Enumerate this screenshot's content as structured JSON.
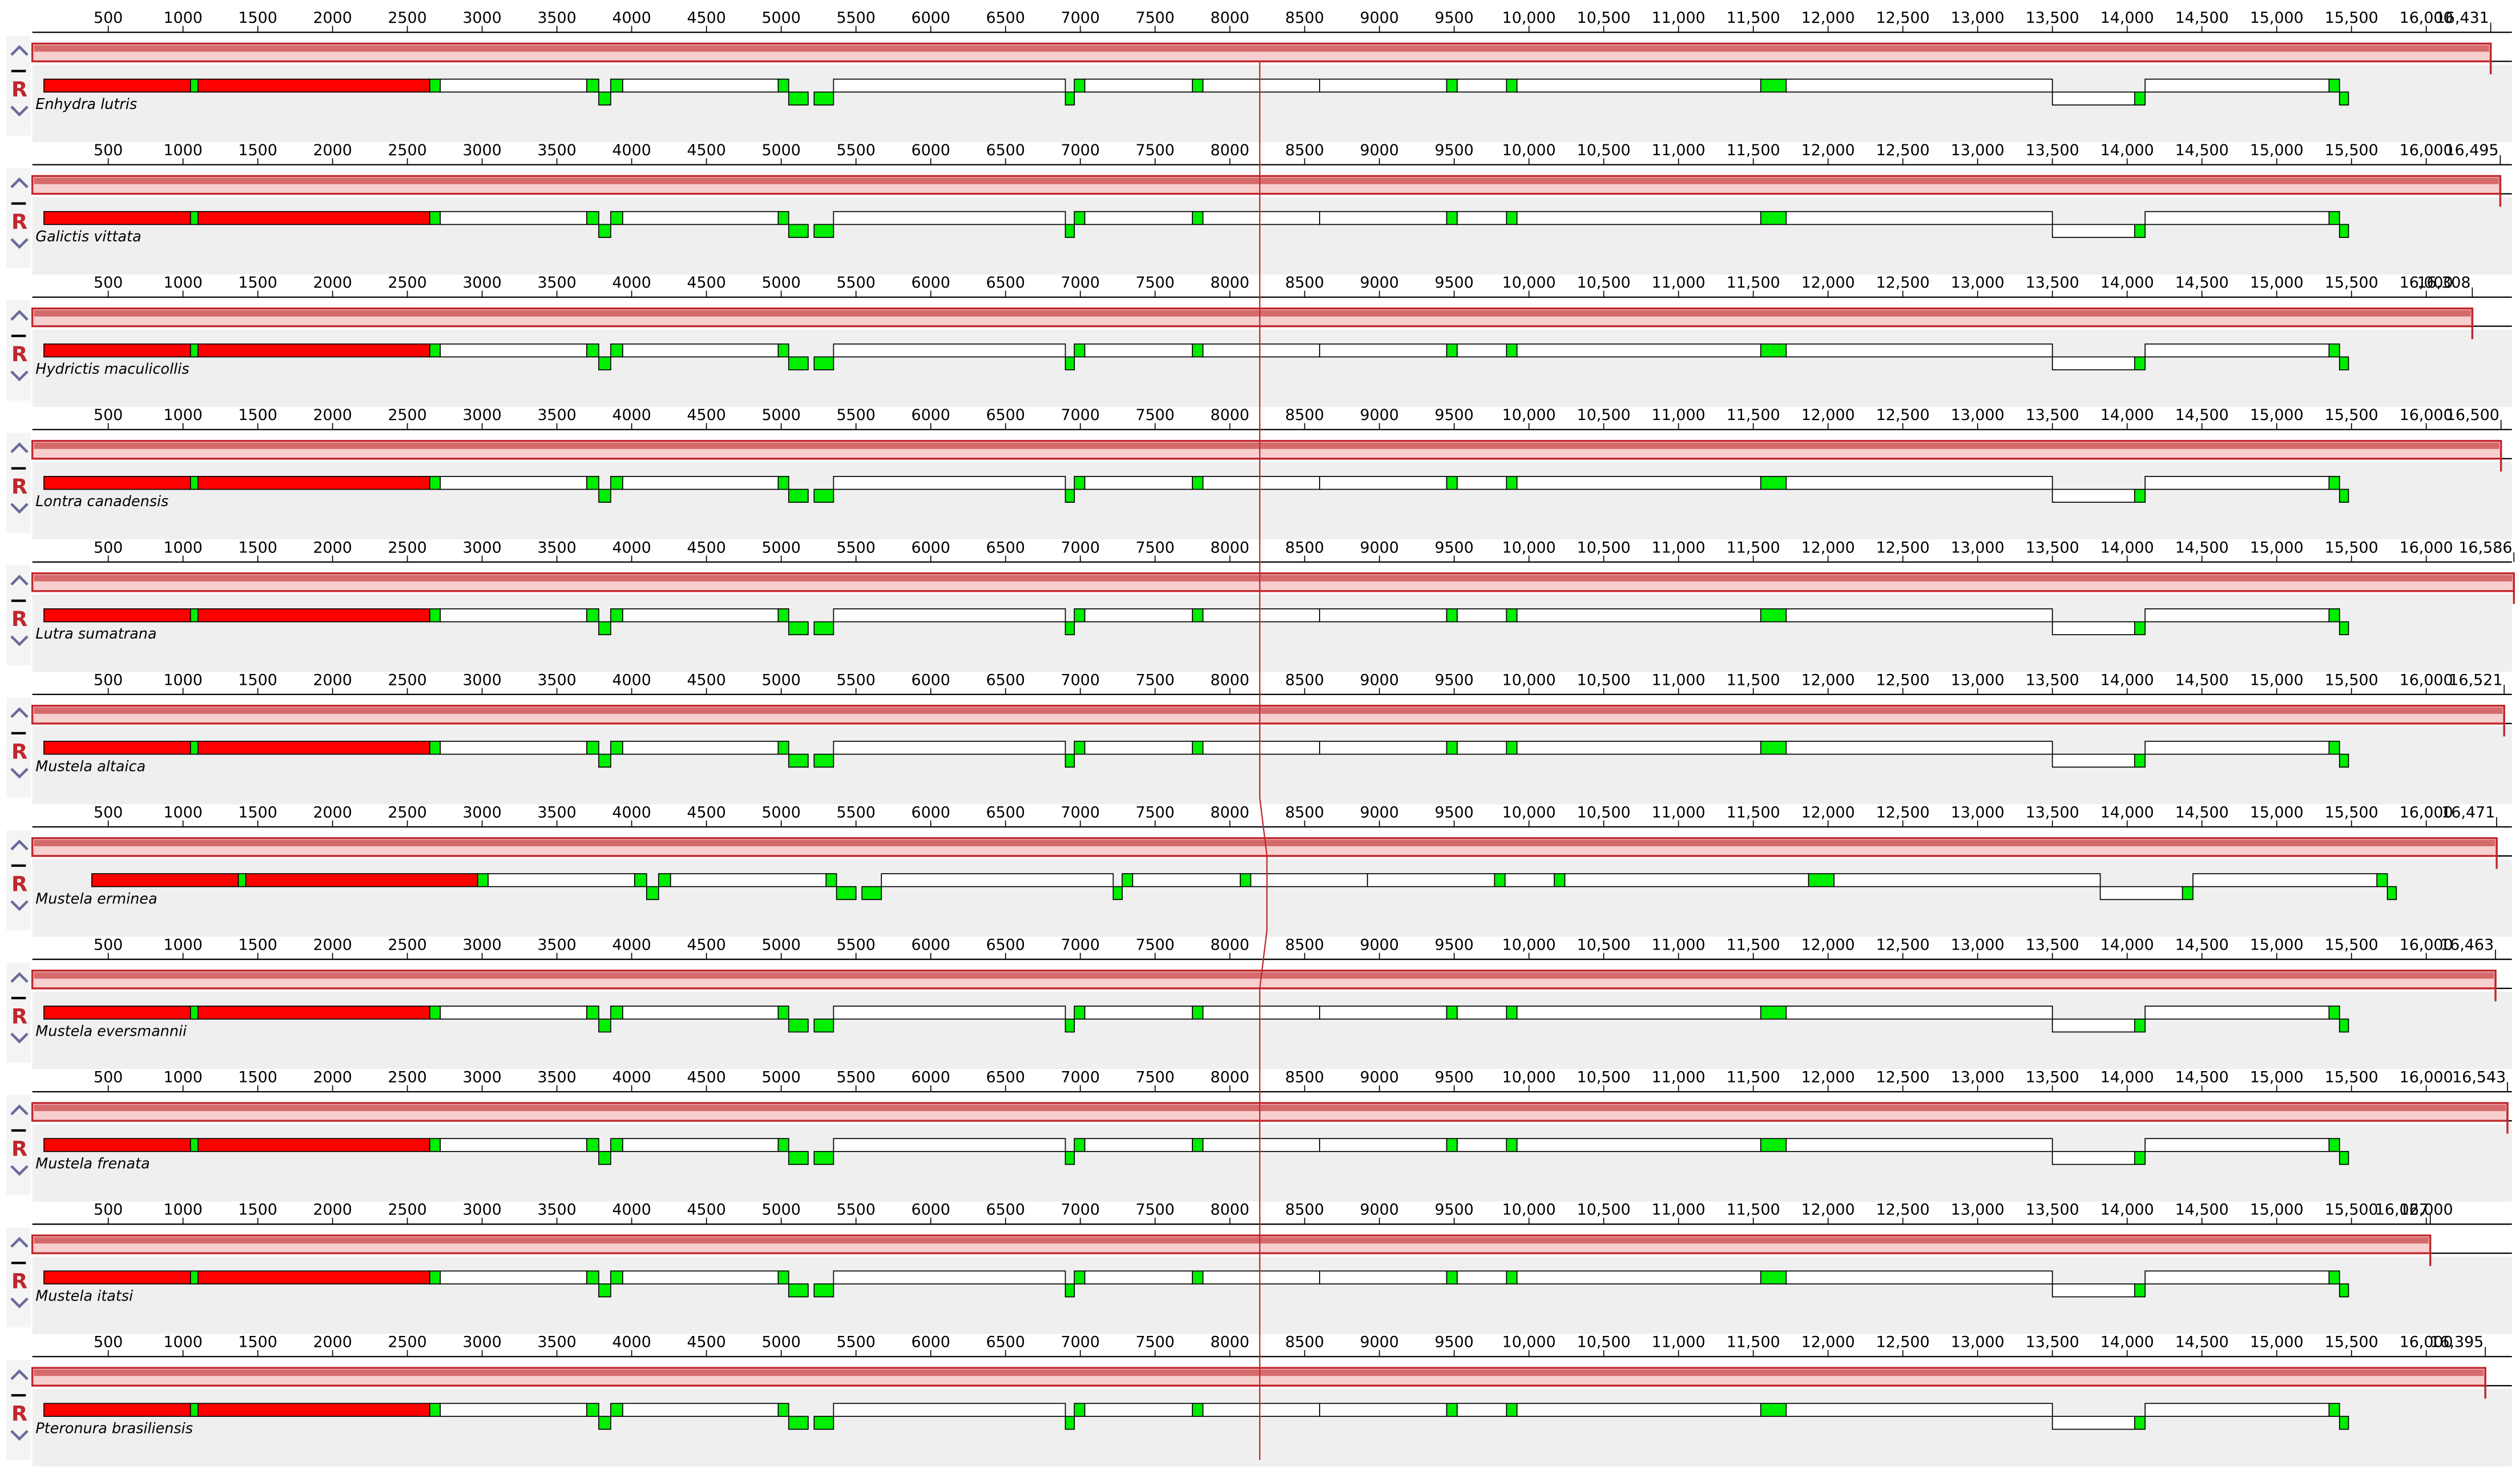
{
  "controls": {
    "reset_label": "R"
  },
  "ruler_ticks": [
    500,
    1000,
    1500,
    2000,
    2500,
    3000,
    3500,
    4000,
    4500,
    5000,
    5500,
    6000,
    6500,
    7000,
    7500,
    8000,
    8500,
    9000,
    9500,
    {
      "value": 10000,
      "label": "10,000"
    },
    {
      "value": 10500,
      "label": "10,500"
    },
    {
      "value": 11000,
      "label": "11,000"
    },
    {
      "value": 11500,
      "label": "11,500"
    },
    {
      "value": 12000,
      "label": "12,000"
    },
    {
      "value": 12500,
      "label": "12,500"
    },
    {
      "value": 13000,
      "label": "13,000"
    },
    {
      "value": 13500,
      "label": "13,500"
    },
    {
      "value": 14000,
      "label": "14,000"
    },
    {
      "value": 14500,
      "label": "14,500"
    },
    {
      "value": 15000,
      "label": "15,000"
    },
    {
      "value": 15500,
      "label": "15,500"
    },
    {
      "value": 16000,
      "label": "16,000"
    }
  ],
  "feature_colors": {
    "rRNA": "#ff0000",
    "tRNA": "#00ee00",
    "CDS": "#ffffff"
  },
  "features": [
    {
      "kind": "rRNA",
      "start": 70,
      "end": 1050,
      "strand": 1
    },
    {
      "kind": "tRNA",
      "start": 1050,
      "end": 1100,
      "strand": 1
    },
    {
      "kind": "rRNA",
      "start": 1100,
      "end": 2650,
      "strand": 1
    },
    {
      "kind": "tRNA",
      "start": 2650,
      "end": 2720,
      "strand": 1
    },
    {
      "kind": "CDS",
      "start": 2720,
      "end": 3700,
      "strand": 1
    },
    {
      "kind": "tRNA",
      "start": 3700,
      "end": 3780,
      "strand": 1
    },
    {
      "kind": "tRNA",
      "start": 3780,
      "end": 3860,
      "strand": -1
    },
    {
      "kind": "tRNA",
      "start": 3860,
      "end": 3940,
      "strand": 1
    },
    {
      "kind": "CDS",
      "start": 3940,
      "end": 4980,
      "strand": 1
    },
    {
      "kind": "tRNA",
      "start": 4980,
      "end": 5050,
      "strand": 1
    },
    {
      "kind": "tRNA",
      "start": 5050,
      "end": 5180,
      "strand": -1
    },
    {
      "kind": "tRNA",
      "start": 5220,
      "end": 5350,
      "strand": -1
    },
    {
      "kind": "CDS",
      "start": 5350,
      "end": 6900,
      "strand": 1
    },
    {
      "kind": "tRNA",
      "start": 6900,
      "end": 6960,
      "strand": -1
    },
    {
      "kind": "tRNA",
      "start": 6960,
      "end": 7030,
      "strand": 1
    },
    {
      "kind": "CDS",
      "start": 7030,
      "end": 7750,
      "strand": 1
    },
    {
      "kind": "tRNA",
      "start": 7750,
      "end": 7820,
      "strand": 1
    },
    {
      "kind": "CDS",
      "start": 7820,
      "end": 8600,
      "strand": 1
    },
    {
      "kind": "CDS",
      "start": 8600,
      "end": 9450,
      "strand": 1
    },
    {
      "kind": "tRNA",
      "start": 9450,
      "end": 9520,
      "strand": 1
    },
    {
      "kind": "CDS",
      "start": 9520,
      "end": 9850,
      "strand": 1
    },
    {
      "kind": "tRNA",
      "start": 9850,
      "end": 9920,
      "strand": 1
    },
    {
      "kind": "CDS",
      "start": 9920,
      "end": 11550,
      "strand": 1
    },
    {
      "kind": "tRNA",
      "start": 11550,
      "end": 11720,
      "strand": 1
    },
    {
      "kind": "CDS",
      "start": 11720,
      "end": 13500,
      "strand": 1
    },
    {
      "kind": "CDS",
      "start": 13500,
      "end": 14050,
      "strand": -1
    },
    {
      "kind": "tRNA",
      "start": 14050,
      "end": 14120,
      "strand": -1
    },
    {
      "kind": "CDS",
      "start": 14120,
      "end": 15350,
      "strand": 1
    },
    {
      "kind": "tRNA",
      "start": 15350,
      "end": 15420,
      "strand": 1
    },
    {
      "kind": "tRNA",
      "start": 15420,
      "end": 15480,
      "strand": -1
    }
  ],
  "genomes": [
    {
      "name": "Enhydra lutris",
      "length": {
        "value": 16431,
        "label": "16,431"
      },
      "offset": 0
    },
    {
      "name": "Galictis vittata",
      "length": {
        "value": 16495,
        "label": "16,495"
      },
      "offset": 0
    },
    {
      "name": "Hydrictis maculicollis",
      "length": {
        "value": 16308,
        "label": "16,308"
      },
      "offset": 0
    },
    {
      "name": "Lontra canadensis",
      "length": {
        "value": 16500,
        "label": "16,500"
      },
      "offset": 0
    },
    {
      "name": "Lutra sumatrana",
      "length": {
        "value": 16586,
        "label": "16,586"
      },
      "offset": 0
    },
    {
      "name": "Mustela altaica",
      "length": {
        "value": 16521,
        "label": "16,521"
      },
      "offset": 0
    },
    {
      "name": "Mustela erminea",
      "length": {
        "value": 16471,
        "label": "16,471"
      },
      "offset": 320
    },
    {
      "name": "Mustela eversmannii",
      "length": {
        "value": 16463,
        "label": "16,463"
      },
      "offset": 0
    },
    {
      "name": "Mustela frenata",
      "length": {
        "value": 16543,
        "label": "16,543"
      },
      "offset": 0
    },
    {
      "name": "Mustela itatsi",
      "length": {
        "value": 16027,
        "label": "16,027"
      },
      "offset": 0
    },
    {
      "name": "Pteronura brasiliensis",
      "length": {
        "value": 16395,
        "label": "16,395"
      },
      "offset": 0
    }
  ]
}
